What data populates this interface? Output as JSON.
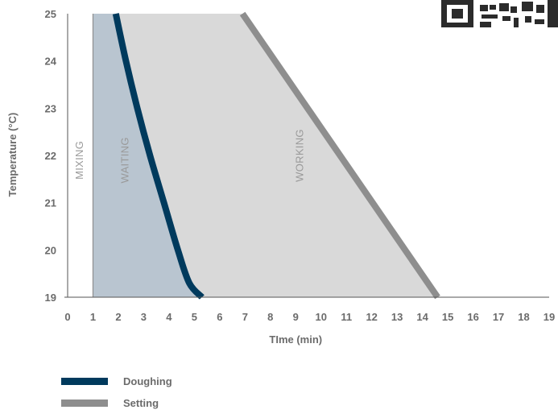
{
  "chart_data": {
    "type": "area",
    "xlabel": "TIme (min)",
    "ylabel": "Temperature (°C)",
    "xlim": [
      0,
      19
    ],
    "ylim": [
      19,
      25
    ],
    "x_ticks": [
      0,
      1,
      2,
      3,
      4,
      5,
      6,
      7,
      8,
      9,
      10,
      11,
      12,
      13,
      14,
      15,
      16,
      17,
      18,
      19
    ],
    "y_ticks": [
      19,
      20,
      21,
      22,
      23,
      24,
      25
    ],
    "grid": false,
    "legend_position": "bottom-left",
    "series": [
      {
        "name": "Doughing",
        "color": "#003A5D",
        "points": [
          [
            1.9,
            25
          ],
          [
            2.3,
            24
          ],
          [
            2.75,
            23
          ],
          [
            3.25,
            22
          ],
          [
            3.8,
            21
          ],
          [
            4.35,
            20
          ],
          [
            4.8,
            19.3
          ],
          [
            5.3,
            19
          ]
        ]
      },
      {
        "name": "Setting",
        "color": "#8E8E8E",
        "points": [
          [
            6.9,
            25
          ],
          [
            14.6,
            19
          ]
        ]
      }
    ],
    "regions": [
      {
        "label": "MIXING",
        "x_start": 0,
        "x_end": 1,
        "color": "#ffffff"
      },
      {
        "label": "WAITING",
        "x_start": 1,
        "x_end": "Doughing",
        "color": "#B9C5D0"
      },
      {
        "label": "WORKING",
        "x_start": "Doughing",
        "x_end": "Setting",
        "color": "#D9D9D9"
      }
    ],
    "region_divider_x": 1
  }
}
